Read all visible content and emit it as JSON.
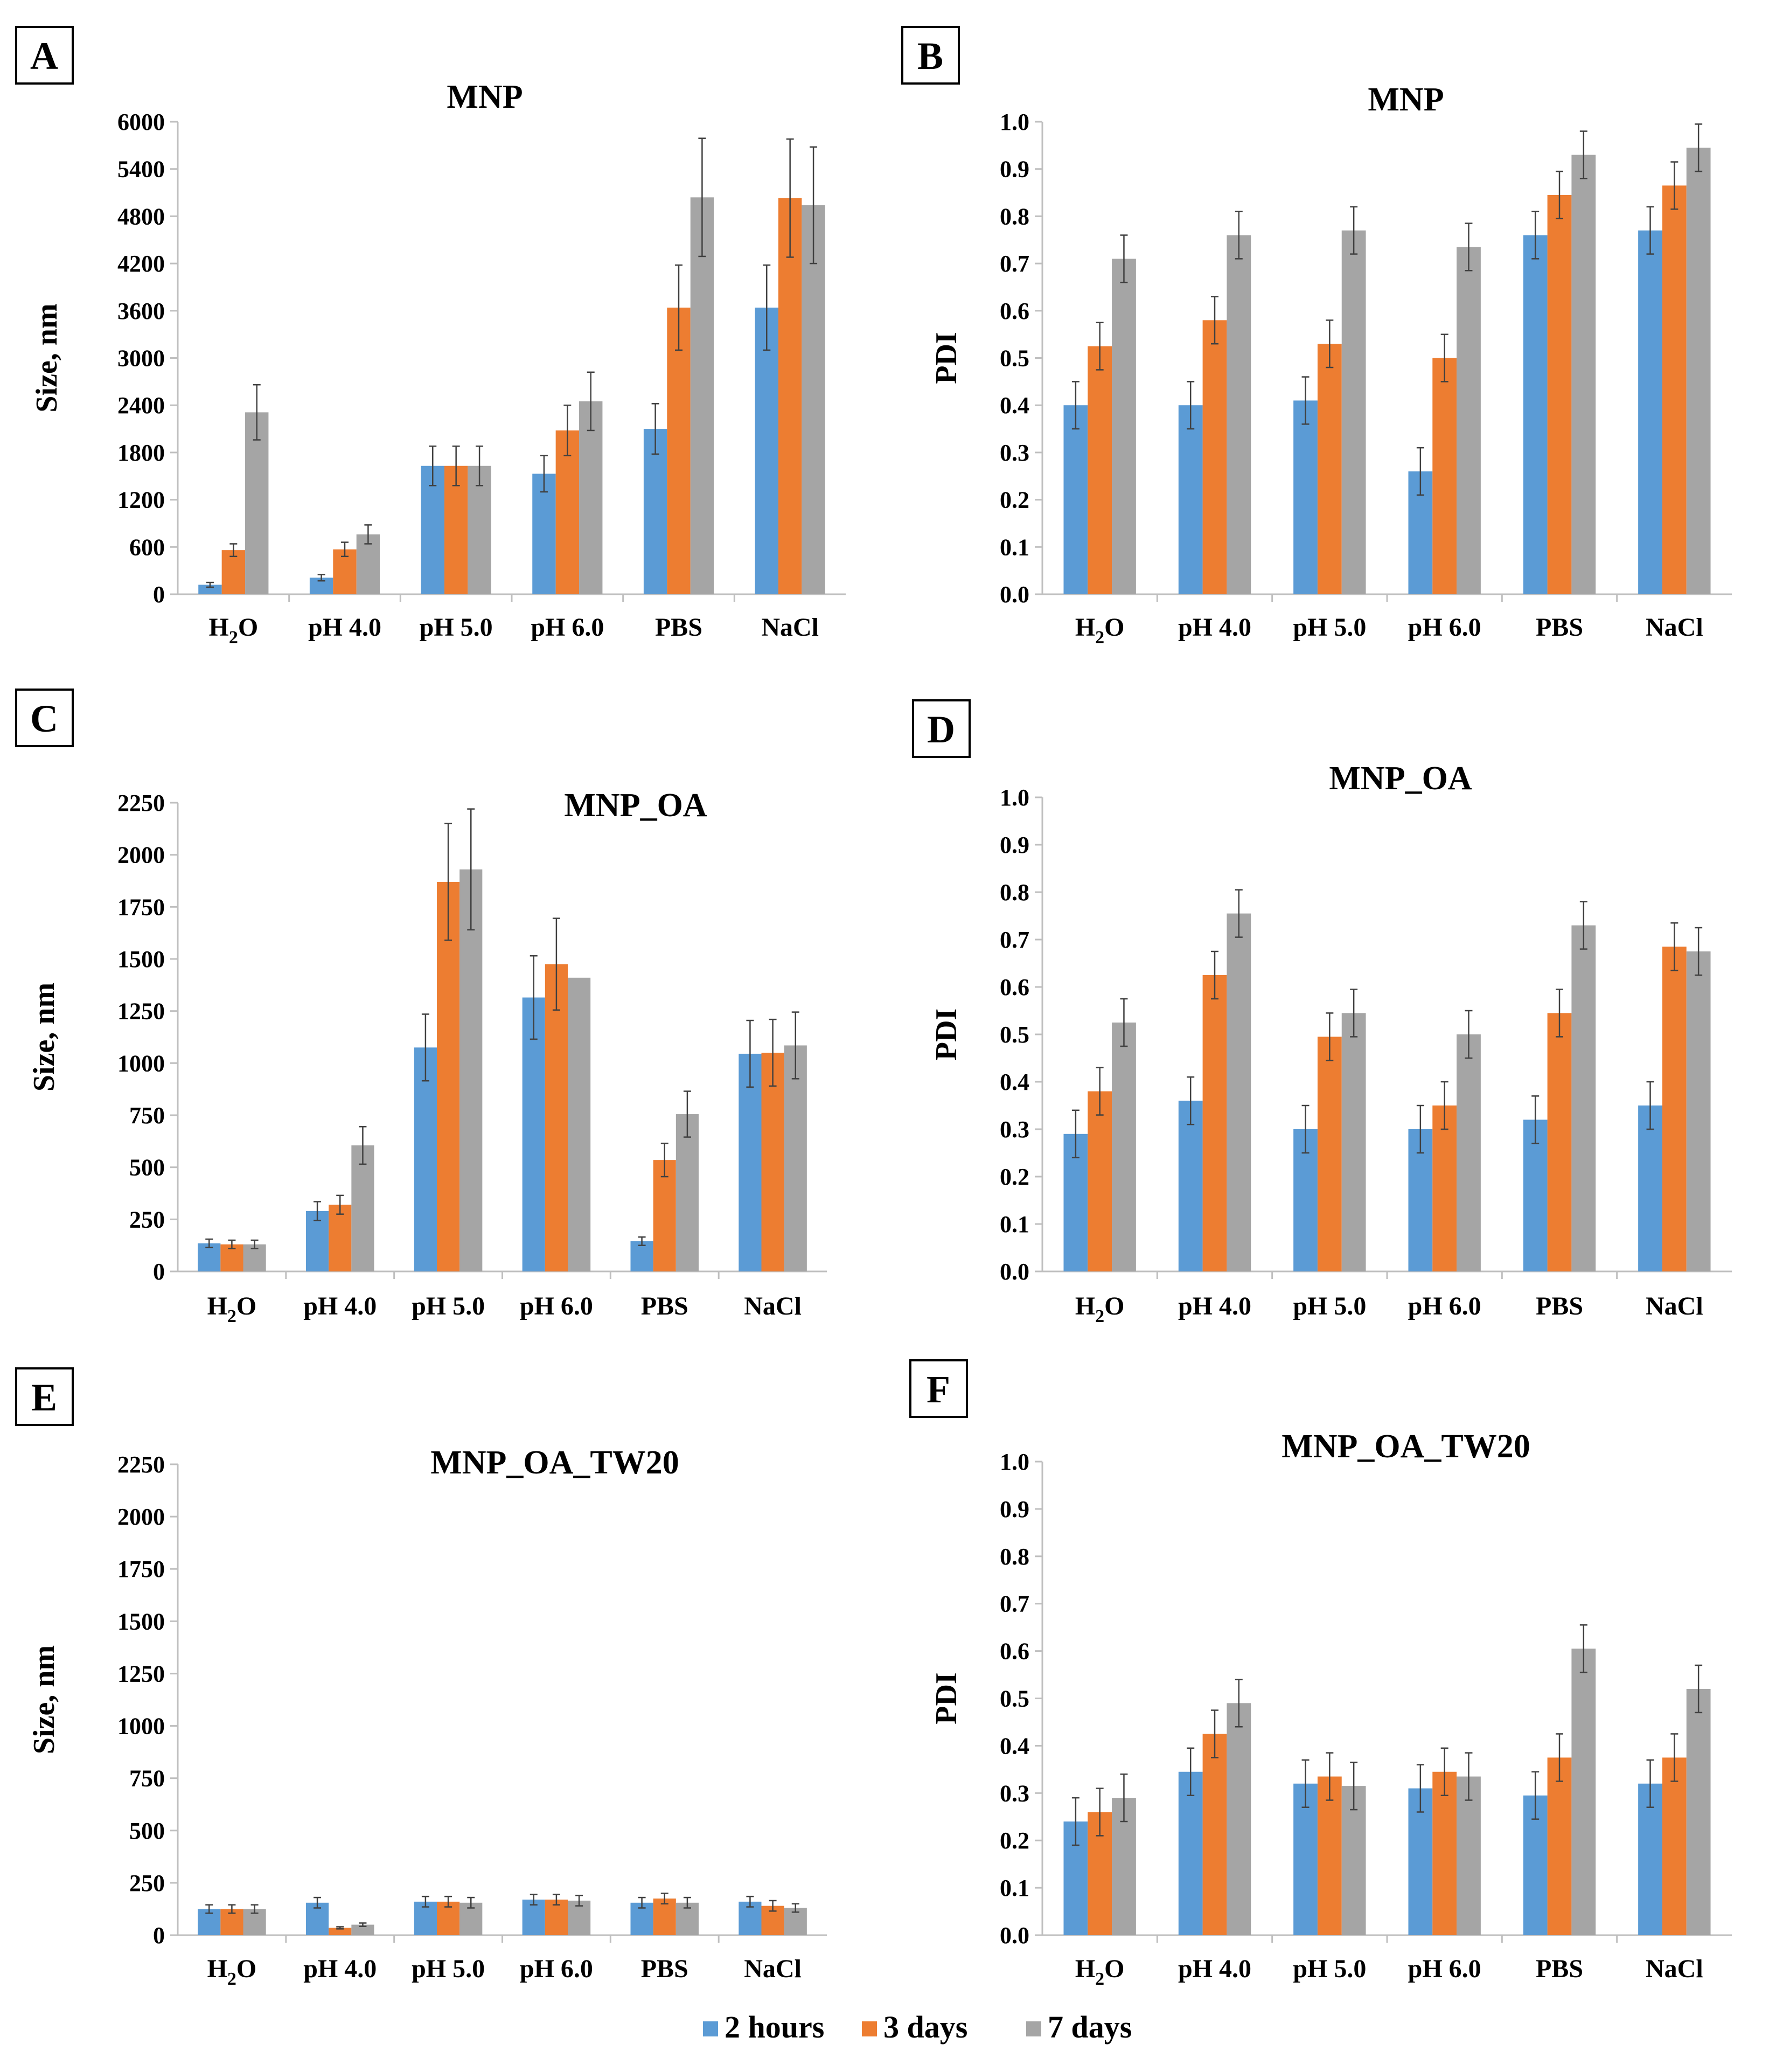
{
  "legend": {
    "series_names": [
      "2 hours",
      "3 days",
      "7 days"
    ],
    "colors": [
      "#5b9bd5",
      "#ed7d31",
      "#a5a5a5"
    ]
  },
  "chart_data": [
    {
      "panel": "A",
      "type": "bar",
      "title": "MNP",
      "ylabel": "Size, nm",
      "xlabel": "",
      "categories": [
        "H2O",
        "pH 4.0",
        "pH 5.0",
        "pH 6.0",
        "PBS",
        "NaCl"
      ],
      "ylim": [
        0,
        6000
      ],
      "yticks": [
        "0",
        "600",
        "1200",
        "1800",
        "2400",
        "3000",
        "3600",
        "4200",
        "4800",
        "5400",
        "6000"
      ],
      "series": [
        {
          "name": "2 hours",
          "values": [
            120,
            210,
            1630,
            1530,
            2100,
            3640
          ],
          "errors": [
            30,
            40,
            250,
            230,
            320,
            540
          ]
        },
        {
          "name": "3 days",
          "values": [
            560,
            570,
            1630,
            2080,
            3640,
            5030
          ],
          "errors": [
            80,
            90,
            250,
            320,
            540,
            750
          ]
        },
        {
          "name": "7 days",
          "values": [
            2310,
            760,
            1630,
            2450,
            5040,
            4940
          ],
          "errors": [
            350,
            120,
            250,
            370,
            750,
            740
          ]
        }
      ]
    },
    {
      "panel": "B",
      "type": "bar",
      "title": "MNP",
      "ylabel": "PDI",
      "xlabel": "",
      "categories": [
        "H2O",
        "pH 4.0",
        "pH 5.0",
        "pH 6.0",
        "PBS",
        "NaCl"
      ],
      "ylim": [
        0,
        1.0
      ],
      "yticks": [
        "0.0",
        "0.1",
        "0.2",
        "0.3",
        "0.4",
        "0.5",
        "0.6",
        "0.7",
        "0.8",
        "0.9",
        "1.0"
      ],
      "series": [
        {
          "name": "2 hours",
          "values": [
            0.4,
            0.4,
            0.41,
            0.26,
            0.76,
            0.77
          ],
          "errors": [
            0.05,
            0.05,
            0.05,
            0.05,
            0.05,
            0.05
          ]
        },
        {
          "name": "3 days",
          "values": [
            0.525,
            0.58,
            0.53,
            0.5,
            0.845,
            0.865
          ],
          "errors": [
            0.05,
            0.05,
            0.05,
            0.05,
            0.05,
            0.05
          ]
        },
        {
          "name": "7 days",
          "values": [
            0.71,
            0.76,
            0.77,
            0.735,
            0.93,
            0.945
          ],
          "errors": [
            0.05,
            0.05,
            0.05,
            0.05,
            0.05,
            0.05
          ]
        }
      ]
    },
    {
      "panel": "C",
      "type": "bar",
      "title": "MNP_OA",
      "ylabel": "Size, nm",
      "xlabel": "",
      "categories": [
        "H2O",
        "pH 4.0",
        "pH 5.0",
        "pH 6.0",
        "PBS",
        "NaCl"
      ],
      "ylim": [
        0,
        2250
      ],
      "yticks": [
        "0",
        "250",
        "500",
        "750",
        "1000",
        "1250",
        "1500",
        "1750",
        "2000",
        "2250"
      ],
      "series": [
        {
          "name": "2 hours",
          "values": [
            135,
            290,
            1075,
            1315,
            145,
            1045
          ],
          "errors": [
            20,
            45,
            160,
            200,
            20,
            160
          ]
        },
        {
          "name": "3 days",
          "values": [
            130,
            320,
            1870,
            1475,
            535,
            1050
          ],
          "errors": [
            20,
            45,
            280,
            220,
            80,
            160
          ]
        },
        {
          "name": "7 days",
          "values": [
            130,
            605,
            1930,
            1410,
            755,
            1085
          ],
          "errors": [
            20,
            90,
            290,
            0,
            110,
            160
          ]
        }
      ]
    },
    {
      "panel": "D",
      "type": "bar",
      "title": "MNP_OA",
      "ylabel": "PDI",
      "xlabel": "",
      "categories": [
        "H2O",
        "pH 4.0",
        "pH 5.0",
        "pH 6.0",
        "PBS",
        "NaCl"
      ],
      "ylim": [
        0,
        1.0
      ],
      "yticks": [
        "0.0",
        "0.1",
        "0.2",
        "0.3",
        "0.4",
        "0.5",
        "0.6",
        "0.7",
        "0.8",
        "0.9",
        "1.0"
      ],
      "series": [
        {
          "name": "2 hours",
          "values": [
            0.29,
            0.36,
            0.3,
            0.3,
            0.32,
            0.35
          ],
          "errors": [
            0.05,
            0.05,
            0.05,
            0.05,
            0.05,
            0.05
          ]
        },
        {
          "name": "3 days",
          "values": [
            0.38,
            0.625,
            0.495,
            0.35,
            0.545,
            0.685
          ],
          "errors": [
            0.05,
            0.05,
            0.05,
            0.05,
            0.05,
            0.05
          ]
        },
        {
          "name": "7 days",
          "values": [
            0.525,
            0.755,
            0.545,
            0.5,
            0.73,
            0.675
          ],
          "errors": [
            0.05,
            0.05,
            0.05,
            0.05,
            0.05,
            0.05
          ]
        }
      ]
    },
    {
      "panel": "E",
      "type": "bar",
      "title": "MNP_OA_TW20",
      "ylabel": "Size, nm",
      "xlabel": "",
      "categories": [
        "H2O",
        "pH 4.0",
        "pH 5.0",
        "pH 6.0",
        "PBS",
        "NaCl"
      ],
      "ylim": [
        0,
        2250
      ],
      "yticks": [
        "0",
        "250",
        "500",
        "750",
        "1000",
        "1250",
        "1500",
        "1750",
        "2000",
        "2250"
      ],
      "series": [
        {
          "name": "2 hours",
          "values": [
            125,
            155,
            160,
            170,
            155,
            160
          ],
          "errors": [
            20,
            25,
            25,
            25,
            25,
            25
          ]
        },
        {
          "name": "3 days",
          "values": [
            125,
            35,
            160,
            170,
            175,
            140
          ],
          "errors": [
            20,
            5,
            25,
            25,
            25,
            25
          ]
        },
        {
          "name": "7 days",
          "values": [
            125,
            50,
            155,
            165,
            155,
            130
          ],
          "errors": [
            20,
            8,
            25,
            25,
            25,
            20
          ]
        }
      ]
    },
    {
      "panel": "F",
      "type": "bar",
      "title": "MNP_OA_TW20",
      "ylabel": "PDI",
      "xlabel": "",
      "categories": [
        "H2O",
        "pH 4.0",
        "pH 5.0",
        "pH 6.0",
        "PBS",
        "NaCl"
      ],
      "ylim": [
        0,
        1.0
      ],
      "yticks": [
        "0.0",
        "0.1",
        "0.2",
        "0.3",
        "0.4",
        "0.5",
        "0.6",
        "0.7",
        "0.8",
        "0.9",
        "1.0"
      ],
      "series": [
        {
          "name": "2 hours",
          "values": [
            0.24,
            0.345,
            0.32,
            0.31,
            0.295,
            0.32
          ],
          "errors": [
            0.05,
            0.05,
            0.05,
            0.05,
            0.05,
            0.05
          ]
        },
        {
          "name": "3 days",
          "values": [
            0.26,
            0.425,
            0.335,
            0.345,
            0.375,
            0.375
          ],
          "errors": [
            0.05,
            0.05,
            0.05,
            0.05,
            0.05,
            0.05
          ]
        },
        {
          "name": "7 days",
          "values": [
            0.29,
            0.49,
            0.315,
            0.335,
            0.605,
            0.52
          ],
          "errors": [
            0.05,
            0.05,
            0.05,
            0.05,
            0.05,
            0.05
          ]
        }
      ]
    }
  ]
}
